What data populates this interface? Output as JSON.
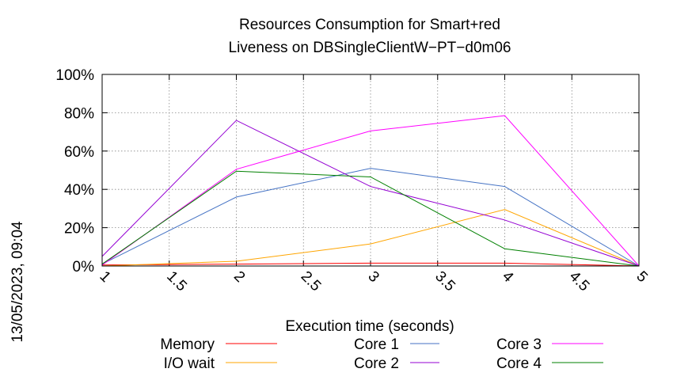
{
  "chart_data": {
    "type": "line",
    "title_line1": "Resources Consumption for Smart+red",
    "title_line2": "Liveness on DBSingleClientW−PT−d0m06",
    "xlabel": "Execution time (seconds)",
    "ylabel": "",
    "side_label": "13/05/2023, 09:04",
    "xlim": [
      1,
      5
    ],
    "ylim": [
      0,
      100
    ],
    "x_ticks": [
      "1",
      "1.5",
      "2",
      "2.5",
      "3",
      "3.5",
      "4",
      "4.5",
      "5"
    ],
    "x_tick_values": [
      1,
      1.5,
      2,
      2.5,
      3,
      3.5,
      4,
      4.5,
      5
    ],
    "y_ticks": [
      "0%",
      "20%",
      "40%",
      "60%",
      "80%",
      "100%"
    ],
    "y_tick_values": [
      0,
      20,
      40,
      60,
      80,
      100
    ],
    "grid": true,
    "legend_position": "bottom",
    "x": [
      1,
      2,
      3,
      4,
      5
    ],
    "series": [
      {
        "name": "Memory",
        "color": "#ff0000",
        "values": [
          0.5,
          1,
          1.5,
          1.5,
          0
        ]
      },
      {
        "name": "I/O wait",
        "color": "#ffa500",
        "values": [
          0,
          2.5,
          11.5,
          29.5,
          0
        ]
      },
      {
        "name": "Core 1",
        "color": "#4472c4",
        "values": [
          1,
          36,
          51,
          41.5,
          0
        ]
      },
      {
        "name": "Core 2",
        "color": "#9400d3",
        "values": [
          5,
          76,
          41.5,
          24,
          0
        ]
      },
      {
        "name": "Core 3",
        "color": "#ff00ff",
        "values": [
          0.5,
          50.5,
          70.5,
          78.5,
          0
        ]
      },
      {
        "name": "Core 4",
        "color": "#008000",
        "values": [
          1,
          49.5,
          46.5,
          9,
          0
        ]
      }
    ]
  }
}
